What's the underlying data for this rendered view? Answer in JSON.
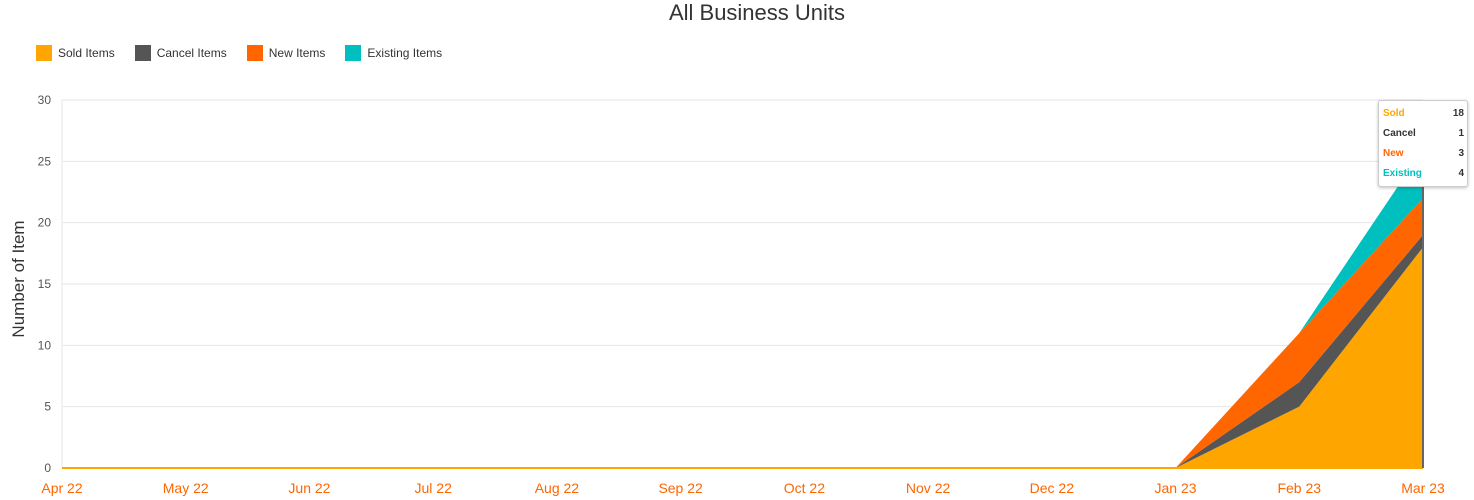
{
  "chart_data": {
    "type": "area",
    "stacked": true,
    "title": "All Business Units",
    "ylabel": "Number of Item",
    "xlabel": "",
    "categories": [
      "Apr 22",
      "May 22",
      "Jun 22",
      "Jul 22",
      "Aug 22",
      "Sep 22",
      "Oct 22",
      "Nov 22",
      "Dec 22",
      "Jan 23",
      "Feb 23",
      "Mar 23"
    ],
    "ylim": [
      0,
      30
    ],
    "yticks": [
      0,
      5,
      10,
      15,
      20,
      25,
      30
    ],
    "grid": true,
    "legend_position": "top-left",
    "series": [
      {
        "name": "Sold Items",
        "color": "#FFA500",
        "values": [
          0,
          0,
          0,
          0,
          0,
          0,
          0,
          0,
          0,
          0,
          5,
          18
        ]
      },
      {
        "name": "Cancel Items",
        "color": "#555555",
        "values": [
          0,
          0,
          0,
          0,
          0,
          0,
          0,
          0,
          0,
          0,
          2,
          1
        ]
      },
      {
        "name": "New Items",
        "color": "#FF6600",
        "values": [
          0,
          0,
          0,
          0,
          0,
          0,
          0,
          0,
          0,
          0,
          4,
          3
        ]
      },
      {
        "name": "Existing Items",
        "color": "#00BFBF",
        "values": [
          0,
          0,
          0,
          0,
          0,
          0,
          0,
          0,
          0,
          0,
          0,
          4
        ]
      }
    ]
  },
  "tooltip": {
    "rows": [
      {
        "label": "Sold",
        "value": "18",
        "color": "#FFA500"
      },
      {
        "label": "Cancel",
        "value": "1",
        "color": "#333333"
      },
      {
        "label": "New",
        "value": "3",
        "color": "#FF6600"
      },
      {
        "label": "Existing",
        "value": "4",
        "color": "#00BFBF"
      }
    ]
  },
  "xtick_color": "#FF6600"
}
